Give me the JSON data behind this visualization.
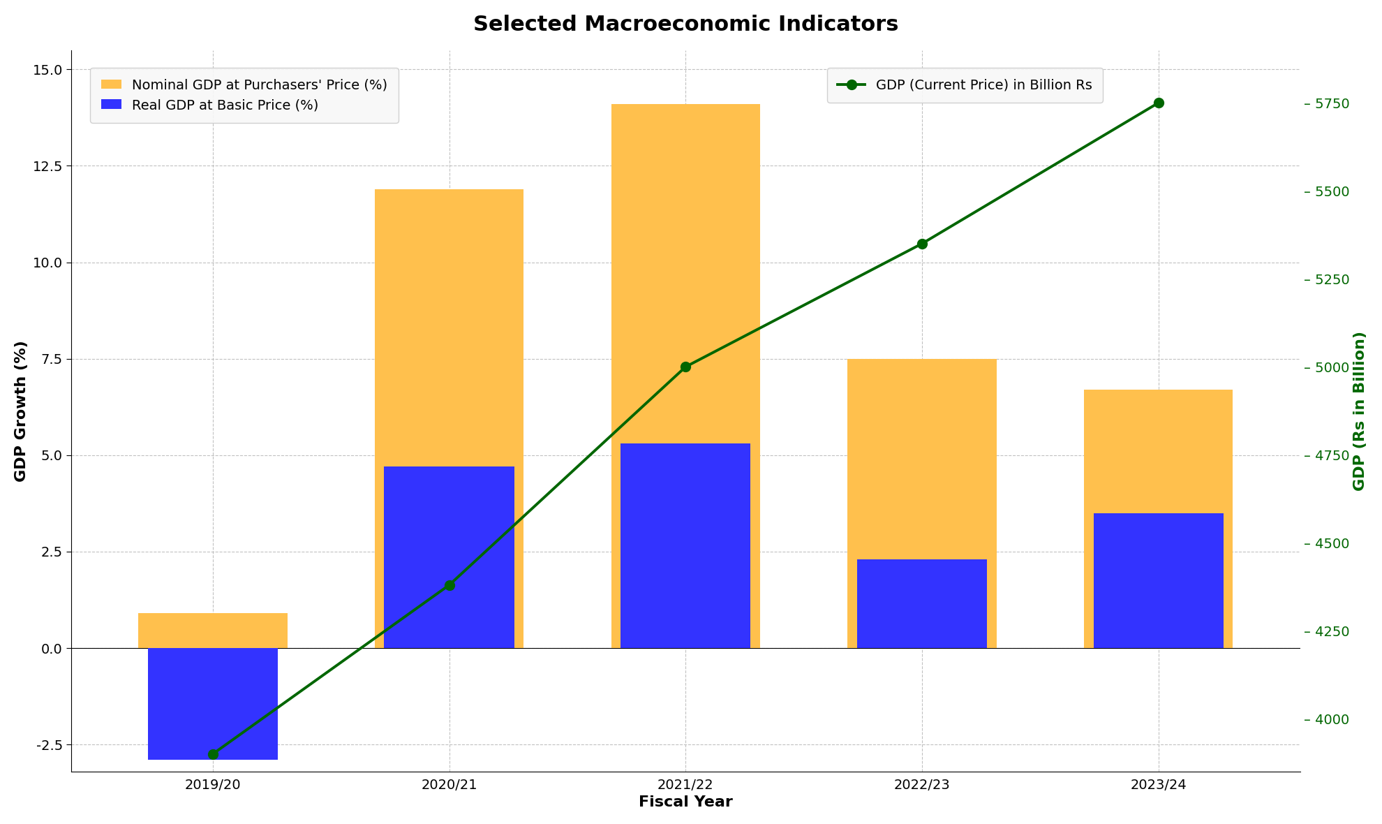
{
  "title": "Selected Macroeconomic Indicators",
  "fiscal_years": [
    "2019/20",
    "2020/21",
    "2021/22",
    "2022/23",
    "2023/24"
  ],
  "real_gdp": [
    -2.9,
    4.7,
    5.3,
    2.3,
    3.5
  ],
  "nominal_gdp": [
    0.9,
    11.9,
    14.1,
    7.5,
    6.7
  ],
  "gdp_current_price": [
    3900,
    4380,
    5000,
    5350,
    5750
  ],
  "bar_color_real": "#3333ff",
  "bar_color_nominal": "#FFC04D",
  "line_color": "#006600",
  "xlabel": "Fiscal Year",
  "ylabel_left": "GDP Growth (%)",
  "ylabel_right": "GDP (Rs in Billion)",
  "ylim_left": [
    -3.2,
    15.5
  ],
  "ylim_right": [
    3850,
    5900
  ],
  "yticks_left": [
    -2.5,
    0.0,
    2.5,
    5.0,
    7.5,
    10.0,
    12.5,
    15.0
  ],
  "yticks_right": [
    4000,
    4250,
    4500,
    4750,
    5000,
    5250,
    5500,
    5750
  ],
  "legend_real": "Real GDP at Basic Price (%)",
  "legend_nominal": "Nominal GDP at Purchasers' Price (%)",
  "legend_line": "GDP (Current Price) in Billion Rs",
  "background_color": "#ffffff",
  "title_fontsize": 22,
  "axis_label_fontsize": 16,
  "tick_fontsize": 14,
  "legend_fontsize": 14,
  "bar_width": 0.55
}
